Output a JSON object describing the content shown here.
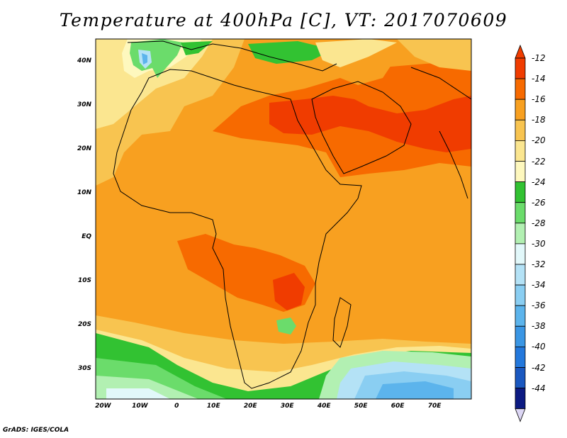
{
  "title": "Temperature at 400hPa [C], VT: 2017070609",
  "credit": "GrADS: IGES/COLA",
  "map": {
    "type": "filled-contour",
    "variable": "Temperature at 400hPa",
    "units": "C",
    "valid_time": "2017070609",
    "lon_range": [
      -22,
      80
    ],
    "lat_range": [
      -37,
      45
    ],
    "x_ticks": [
      "20W",
      "10W",
      "0",
      "10E",
      "20E",
      "30E",
      "40E",
      "50E",
      "60E",
      "70E"
    ],
    "x_tick_values": [
      -20,
      -10,
      0,
      10,
      20,
      30,
      40,
      50,
      60,
      70
    ],
    "y_ticks": [
      "40N",
      "30N",
      "20N",
      "10N",
      "EQ",
      "10S",
      "20S",
      "30S"
    ],
    "y_tick_values": [
      40,
      30,
      20,
      10,
      0,
      -10,
      -20,
      -30
    ],
    "region": "Africa, Middle East and western Indian Ocean"
  },
  "legend": {
    "labels": [
      "-12",
      "-14",
      "-16",
      "-18",
      "-20",
      "-22",
      "-24",
      "-26",
      "-28",
      "-30",
      "-32",
      "-34",
      "-36",
      "-38",
      "-40",
      "-42",
      "-44"
    ],
    "colors": [
      "#f03c00",
      "#f76a00",
      "#f8a020",
      "#f8c450",
      "#fbe690",
      "#fef8be",
      "#32c232",
      "#6bdc6b",
      "#b2f0b2",
      "#e2f8fa",
      "#b4e2f6",
      "#8acef2",
      "#5cb4ec",
      "#3a96e4",
      "#2378dc",
      "#1a58c0",
      "#0c1a82"
    ],
    "top_triangle_color": "#f03c00",
    "bottom_triangle_color": "#dcd6f4"
  }
}
